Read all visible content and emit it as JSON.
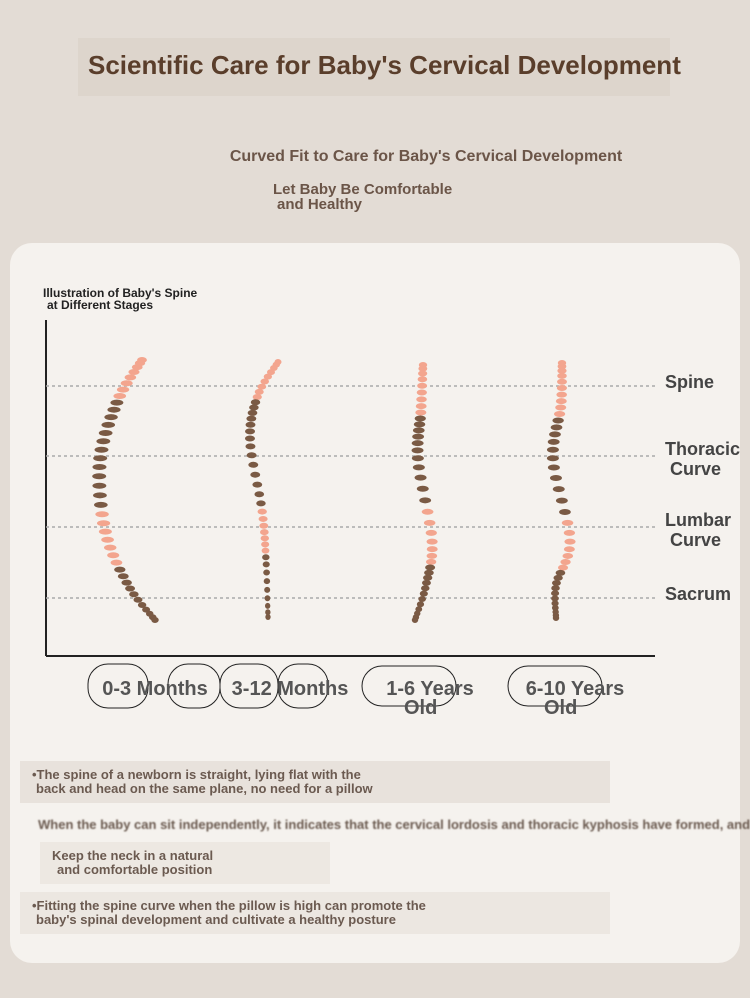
{
  "header": {
    "title": "Scientific Care for Baby's Cervical Development",
    "subtitle": "Curved Fit to Care for Baby's Cervical Development",
    "tagline": [
      "Let Baby Be Comfortable",
      "and Healthy"
    ]
  },
  "illustration": {
    "title": [
      "Illustration of Baby's Spine",
      "at Different Stages"
    ],
    "parts": [
      [
        "Spine"
      ],
      [
        "Thoracic",
        "Curve"
      ],
      [
        "Lumbar",
        "Curve"
      ],
      [
        "Sacrum"
      ]
    ],
    "stages": [
      [
        "0-3 Months"
      ],
      [
        "3-12 Months"
      ],
      [
        "1-6 Years",
        "Old"
      ],
      [
        "6-10 Years",
        "Old"
      ]
    ]
  },
  "notes": [
    [
      "•The spine of a newborn is straight, lying flat with the",
      "back and head on the same plane, no need for a pillow"
    ],
    [
      "When the baby can sit independently, it indicates that the cervical lordosis and thoracic kyphosis have formed, and a pillow is needed"
    ],
    [
      "Keep the neck in a natural",
      "and comfortable position"
    ],
    [
      "•Fitting the spine curve when the pillow is high can promote the",
      "baby's spinal development and cultivate a healthy posture"
    ]
  ]
}
